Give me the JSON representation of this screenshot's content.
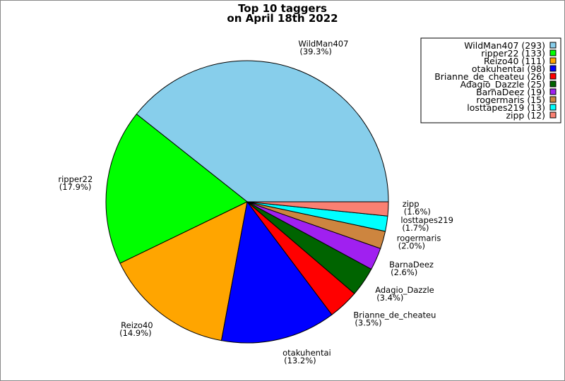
{
  "chart_data": {
    "type": "pie",
    "title": [
      "Top 10 taggers",
      "on April 18th 2022"
    ],
    "start_angle_deg": 0,
    "direction": "counterclockwise",
    "legend_placement": "top-right",
    "slices": [
      {
        "label": "WildMan407",
        "value": 293,
        "percent": "39.3%",
        "color": "#87CEEB"
      },
      {
        "label": "ripper22",
        "value": 133,
        "percent": "17.9%",
        "color": "#00FF00"
      },
      {
        "label": "Reizo40",
        "value": 111,
        "percent": "14.9%",
        "color": "#FFA500"
      },
      {
        "label": "otakuhentai",
        "value": 98,
        "percent": "13.2%",
        "color": "#0000FF"
      },
      {
        "label": "Brianne_de_cheateu",
        "value": 26,
        "percent": "3.5%",
        "color": "#FF0000"
      },
      {
        "label": "Adagio_Dazzle",
        "value": 25,
        "percent": "3.4%",
        "color": "#006400"
      },
      {
        "label": "BarnaDeez",
        "value": 19,
        "percent": "2.6%",
        "color": "#A020F0"
      },
      {
        "label": "rogermaris",
        "value": 15,
        "percent": "2.0%",
        "color": "#CD853F"
      },
      {
        "label": "losttapes219",
        "value": 13,
        "percent": "1.7%",
        "color": "#00FFFF"
      },
      {
        "label": "zipp",
        "value": 12,
        "percent": "1.6%",
        "color": "#FA8072"
      }
    ]
  }
}
